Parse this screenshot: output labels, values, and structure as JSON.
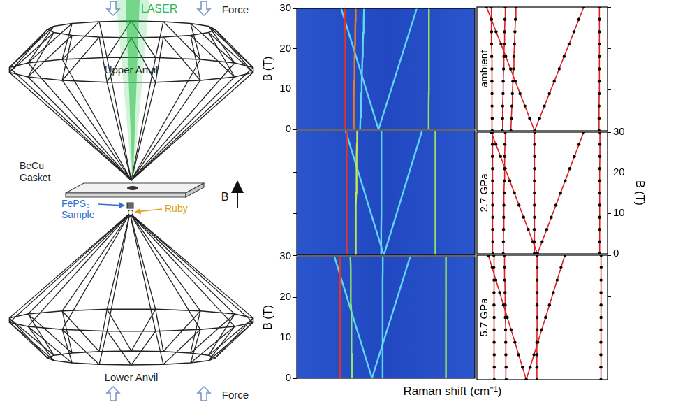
{
  "chart_data": [
    {
      "type": "line",
      "xlim": [
        60,
        195
      ],
      "ylim": [
        0,
        30
      ],
      "yticks": [
        0,
        10,
        20,
        30
      ],
      "tick_labels": "y",
      "y_label": "B (T)",
      "y": [
        0,
        3,
        6,
        9,
        12,
        15,
        18,
        21,
        24,
        27,
        30
      ],
      "series": [
        {
          "color": "#e8321e",
          "x": [
            97.0,
            97.0,
            96.9,
            96.9,
            96.8,
            96.8,
            96.7,
            96.6,
            96.6,
            96.5,
            96.4
          ]
        },
        {
          "color": "#f07a1e",
          "x": [
            103.0,
            103.1,
            103.2,
            103.4,
            103.5,
            103.7,
            103.9,
            104.1,
            104.3,
            104.5,
            104.7
          ]
        },
        {
          "color": "#5fd6f2",
          "x": [
            108.0,
            108.3,
            108.6,
            108.9,
            109.2,
            109.5,
            109.8,
            110.1,
            110.4,
            110.7,
            111.0
          ]
        },
        {
          "color": "#5fd6f2",
          "x": [
            122.0,
            119.1,
            116.3,
            113.4,
            110.6,
            107.8,
            105.0,
            102.2,
            99.3,
            96.5,
            93.6
          ]
        },
        {
          "color": "#5fd6f2",
          "x": [
            122.0,
            124.9,
            127.8,
            130.7,
            133.6,
            136.5,
            139.4,
            142.3,
            145.2,
            148.1,
            151.0
          ]
        },
        {
          "color": "#9be35a",
          "x": [
            160.0,
            160.0,
            160.0,
            160.1,
            160.1,
            160.1,
            160.2,
            160.2,
            160.2,
            160.3,
            160.3
          ]
        }
      ]
    },
    {
      "type": "line",
      "xlim": [
        60,
        195
      ],
      "ylim": [
        0,
        30
      ],
      "yticks": [
        0,
        10,
        20,
        30
      ],
      "tick_labels": false,
      "y": [
        0,
        3,
        6,
        9,
        12,
        15,
        18,
        21,
        24,
        27,
        30
      ],
      "series": [
        {
          "color": "#e8321e",
          "x": [
            98.0,
            98.0,
            97.9,
            97.9,
            97.9,
            97.8,
            97.8,
            97.8,
            97.7,
            97.7,
            97.7
          ]
        },
        {
          "color": "#c8e84a",
          "x": [
            104.5,
            104.6,
            104.7,
            104.8,
            104.9,
            105.1,
            105.2,
            105.3,
            105.5,
            105.6,
            105.8
          ]
        },
        {
          "color": "#5fd6f2",
          "x": [
            124.0,
            124.0,
            124.0,
            124.1,
            124.1,
            124.1,
            124.1,
            124.2,
            124.2,
            124.2,
            124.2
          ]
        },
        {
          "color": "#5fd6f2",
          "x": [
            126.0,
            123.1,
            120.2,
            117.3,
            114.4,
            111.5,
            108.6,
            105.7,
            102.8,
            99.9,
            97.0
          ]
        },
        {
          "color": "#5fd6f2",
          "x": [
            126.0,
            128.9,
            131.8,
            134.7,
            137.6,
            140.5,
            143.4,
            146.3,
            149.2,
            152.1,
            155.0
          ]
        },
        {
          "color": "#9be35a",
          "x": [
            165.0,
            165.0,
            165.0,
            165.0,
            165.1,
            165.1,
            165.1,
            165.1,
            165.2,
            165.2,
            165.2
          ]
        }
      ]
    },
    {
      "type": "line",
      "xlim": [
        60,
        195
      ],
      "ylim": [
        0,
        30
      ],
      "yticks": [
        0,
        10,
        20,
        30
      ],
      "tick_labels": "y",
      "y_label": "B (T)",
      "y": [
        0,
        3,
        6,
        9,
        12,
        15,
        18,
        21,
        24,
        27,
        30
      ],
      "series": [
        {
          "color": "#e8321e",
          "x": [
            93.0,
            93.0,
            93.0,
            92.9,
            92.9,
            92.9,
            92.8,
            92.8,
            92.8,
            92.7,
            92.7
          ]
        },
        {
          "color": "#8fe36a",
          "x": [
            102.0,
            101.9,
            101.7,
            101.6,
            101.5,
            101.3,
            101.2,
            101.1,
            100.9,
            100.8,
            100.6
          ]
        },
        {
          "color": "#5fd6f2",
          "x": [
            125.0,
            125.0,
            125.0,
            125.0,
            125.1,
            125.1,
            125.1,
            125.1,
            125.1,
            125.2,
            125.2
          ]
        },
        {
          "color": "#5fd6f2",
          "x": [
            117.0,
            114.2,
            111.3,
            108.5,
            105.6,
            102.8,
            99.9,
            97.1,
            94.2,
            91.4,
            88.5
          ]
        },
        {
          "color": "#5fd6f2",
          "x": [
            117.0,
            119.9,
            122.8,
            125.7,
            128.6,
            131.5,
            134.4,
            137.3,
            140.2,
            143.1,
            146.0
          ]
        },
        {
          "color": "#9be35a",
          "x": [
            173.0,
            173.0,
            173.0,
            173.0,
            173.0,
            173.1,
            173.1,
            173.1,
            173.1,
            173.2,
            173.2
          ]
        }
      ]
    },
    {
      "type": "scatter",
      "xlim": [
        88,
        165
      ],
      "ylim": [
        0,
        30
      ],
      "yticks": [
        0,
        10,
        20,
        30
      ],
      "tick_labels": false,
      "annotation": "ambient",
      "y": [
        0,
        3,
        6,
        9,
        12,
        15,
        18,
        21,
        24,
        27,
        30
      ],
      "series": [
        {
          "color": "#e02020",
          "marker": "circle",
          "line_style": "solid",
          "x": [
            97.0,
            97.0,
            96.9,
            96.9,
            96.8,
            96.8,
            96.7,
            96.6,
            96.6,
            96.5,
            96.4
          ]
        },
        {
          "color": "#e02020",
          "marker": "circle",
          "line_style": "solid",
          "x": [
            103.0,
            103.1,
            103.2,
            103.4,
            103.5,
            103.7,
            103.9,
            104.1,
            104.3,
            104.5,
            104.7
          ]
        },
        {
          "color": "#e02020",
          "marker": "circle",
          "line_style": "solid",
          "x": [
            108.0,
            108.3,
            108.6,
            108.9,
            109.2,
            109.5,
            109.8,
            110.1,
            110.4,
            110.7,
            111.0
          ]
        },
        {
          "color": "#e02020",
          "marker": "circle",
          "line_style": "solid",
          "x": [
            122.0,
            119.1,
            116.3,
            113.4,
            110.6,
            107.8,
            105.0,
            102.2,
            99.3,
            96.5,
            93.6
          ]
        },
        {
          "color": "#e02020",
          "marker": "circle",
          "line_style": "solid",
          "x": [
            122.0,
            124.9,
            127.8,
            130.7,
            133.6,
            136.5,
            139.4,
            142.3,
            145.2,
            148.1,
            151.0
          ]
        },
        {
          "color": "#e02020",
          "marker": "circle",
          "line_style": "solid",
          "x": [
            160.0,
            160.0,
            160.0,
            160.1,
            160.1,
            160.1,
            160.2,
            160.2,
            160.2,
            160.3,
            160.3
          ]
        }
      ]
    },
    {
      "type": "scatter",
      "xlim": [
        88,
        170
      ],
      "ylim": [
        0,
        30
      ],
      "yticks": [
        0,
        10,
        20,
        30
      ],
      "tick_labels": "y",
      "y_label": "B (T)",
      "annotation": "2.7 GPa",
      "y": [
        0,
        3,
        6,
        9,
        12,
        15,
        18,
        21,
        24,
        27,
        30
      ],
      "series": [
        {
          "color": "#e02020",
          "marker": "circle",
          "line_style": "solid",
          "x": [
            98.0,
            98.0,
            97.9,
            97.9,
            97.9,
            97.8,
            97.8,
            97.8,
            97.7,
            97.7,
            97.7
          ]
        },
        {
          "color": "#e02020",
          "marker": "circle",
          "line_style": "solid",
          "x": [
            104.5,
            104.6,
            104.7,
            104.8,
            104.9,
            105.1,
            105.2,
            105.3,
            105.5,
            105.6,
            105.8
          ]
        },
        {
          "color": "#e02020",
          "marker": "circle",
          "line_style": "solid",
          "x": [
            124.0,
            124.0,
            124.0,
            124.1,
            124.1,
            124.1,
            124.1,
            124.2,
            124.2,
            124.2,
            124.2
          ]
        },
        {
          "color": "#e02020",
          "marker": "circle",
          "line_style": "solid",
          "x": [
            126.0,
            123.1,
            120.2,
            117.3,
            114.4,
            111.5,
            108.6,
            105.7,
            102.8,
            99.9,
            97.0
          ]
        },
        {
          "color": "#e02020",
          "marker": "circle",
          "line_style": "solid",
          "x": [
            126.0,
            128.9,
            131.8,
            134.7,
            137.6,
            140.5,
            143.4,
            146.3,
            149.2,
            152.1,
            155.0
          ]
        },
        {
          "color": "#e02020",
          "marker": "circle",
          "line_style": "solid",
          "x": [
            165.0,
            165.0,
            165.0,
            165.0,
            165.1,
            165.1,
            165.1,
            165.1,
            165.2,
            165.2,
            165.2
          ]
        }
      ]
    },
    {
      "type": "scatter",
      "xlim": [
        80,
        178
      ],
      "ylim": [
        0,
        30
      ],
      "yticks": [
        0,
        10,
        20,
        30
      ],
      "tick_labels": false,
      "annotation": "5.7 GPa",
      "y": [
        0,
        3,
        6,
        9,
        12,
        15,
        18,
        21,
        24,
        27,
        30
      ],
      "series": [
        {
          "color": "#e02020",
          "marker": "circle",
          "line_style": "solid",
          "x": [
            93.0,
            93.0,
            93.0,
            92.9,
            92.9,
            92.9,
            92.8,
            92.8,
            92.8,
            92.7,
            92.7
          ]
        },
        {
          "color": "#e02020",
          "marker": "circle",
          "line_style": "solid",
          "x": [
            102.0,
            101.9,
            101.7,
            101.6,
            101.5,
            101.3,
            101.2,
            101.1,
            100.9,
            100.8,
            100.6
          ]
        },
        {
          "color": "#e02020",
          "marker": "circle",
          "line_style": "solid",
          "x": [
            125.0,
            125.0,
            125.0,
            125.0,
            125.1,
            125.1,
            125.1,
            125.1,
            125.1,
            125.2,
            125.2
          ]
        },
        {
          "color": "#e02020",
          "marker": "circle",
          "line_style": "solid",
          "x": [
            117.0,
            114.2,
            111.3,
            108.5,
            105.6,
            102.8,
            99.9,
            97.1,
            94.2,
            91.4,
            88.5
          ]
        },
        {
          "color": "#e02020",
          "marker": "circle",
          "line_style": "solid",
          "x": [
            117.0,
            119.9,
            122.8,
            125.7,
            128.6,
            131.5,
            134.4,
            137.3,
            140.2,
            143.1,
            146.0
          ]
        },
        {
          "color": "#e02020",
          "marker": "circle",
          "line_style": "solid",
          "x": [
            173.0,
            173.0,
            173.0,
            173.0,
            173.0,
            173.1,
            173.1,
            173.1,
            173.1,
            173.2,
            173.2
          ]
        }
      ]
    }
  ],
  "x_label": "Raman shift (cm⁻¹)",
  "diagram": {
    "laser": "LASER",
    "force_top": "Force",
    "upper_anvil": "Upper Anvil",
    "gasket": [
      "BeCu",
      "Gasket"
    ],
    "sample": [
      "FePS₃",
      "Sample"
    ],
    "ruby": "Ruby",
    "field": "B",
    "lower_anvil": "Lower Anvil",
    "force_bottom": "Force"
  }
}
